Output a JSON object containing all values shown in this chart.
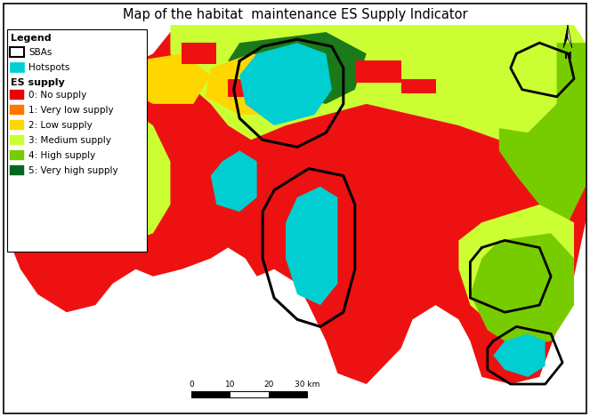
{
  "title": "Map of the habitat  maintenance ES Supply Indicator",
  "title_fontsize": 10.5,
  "background_color": "#ffffff",
  "border_color": "#000000",
  "figsize": [
    6.63,
    4.69
  ],
  "dpi": 100,
  "hotspot_color": "#00CED1",
  "supply_colors": [
    "#EE0000",
    "#FF7700",
    "#FFD700",
    "#CCFF33",
    "#77CC00",
    "#006622"
  ],
  "legend_fontsize": 7.5,
  "legend_title_fontsize": 8,
  "scale_ticks": [
    0,
    10,
    20,
    30
  ],
  "scale_unit": "km",
  "legend_items": [
    {
      "label": "SBAs",
      "facecolor": "#ffffff",
      "edgecolor": "#000000",
      "outline_only": true
    },
    {
      "label": "Hotspots",
      "facecolor": "#00CED1",
      "edgecolor": "#00CED1",
      "outline_only": false
    },
    {
      "label": "0: No supply",
      "facecolor": "#EE0000",
      "edgecolor": "#EE0000",
      "outline_only": false
    },
    {
      "label": "1: Very low supply",
      "facecolor": "#FF7700",
      "edgecolor": "#FF7700",
      "outline_only": false
    },
    {
      "label": "2: Low supply",
      "facecolor": "#FFD700",
      "edgecolor": "#FFD700",
      "outline_only": false
    },
    {
      "label": "3: Medium supply",
      "facecolor": "#CCFF33",
      "edgecolor": "#CCFF33",
      "outline_only": false
    },
    {
      "label": "4: High supply",
      "facecolor": "#77CC00",
      "edgecolor": "#77CC00",
      "outline_only": false
    },
    {
      "label": "5: Very high supply",
      "facecolor": "#006622",
      "edgecolor": "#006622",
      "outline_only": false
    }
  ],
  "map_outline_color": "#000000",
  "map_bg": "#ffffff"
}
